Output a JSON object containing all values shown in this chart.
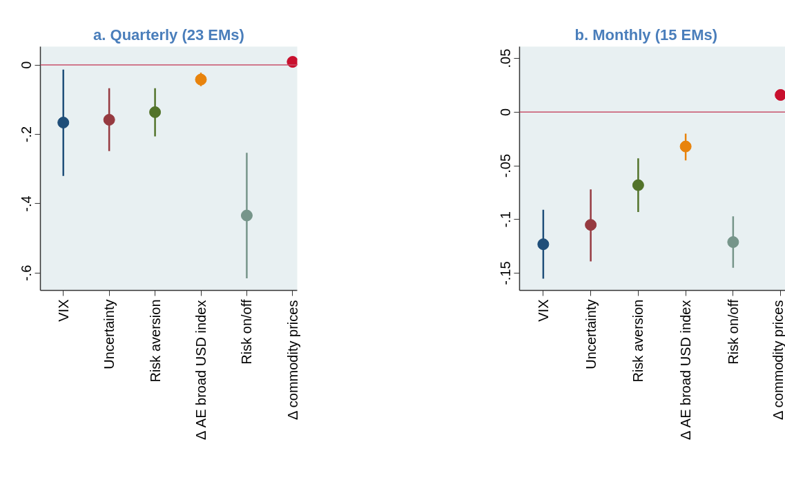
{
  "chart_data": [
    {
      "type": "scatter",
      "title": "a. Quarterly (23 EMs)",
      "categories": [
        "VIX",
        "Uncertainty",
        "Risk aversion",
        "Δ AE broad USD index",
        "Risk on/off",
        "Δ commodity prices"
      ],
      "values": [
        -0.166,
        -0.158,
        -0.136,
        -0.042,
        -0.434,
        0.009
      ],
      "errors": [
        [
          -0.32,
          -0.013
        ],
        [
          -0.248,
          -0.067
        ],
        [
          -0.206,
          -0.067
        ],
        [
          -0.061,
          -0.022
        ],
        [
          -0.615,
          -0.253
        ],
        null
      ],
      "colors": [
        "#1f4e79",
        "#963a40",
        "#52732a",
        "#e8830c",
        "#76958a",
        "#c8102e"
      ],
      "ylim": [
        -0.65,
        0.053
      ],
      "yticks": [
        {
          "value": -0.6,
          "label": "-.6"
        },
        {
          "value": -0.4,
          "label": "-.4"
        },
        {
          "value": -0.2,
          "label": "-.2"
        },
        0
      ],
      "ref_lines": [
        {
          "axis": "y",
          "value": 0,
          "color": "#c8506a"
        }
      ],
      "marker": "circle",
      "grid": false
    },
    {
      "type": "scatter",
      "title": "b.    Monthly (15 EMs)",
      "categories": [
        "VIX",
        "Uncertainty",
        "Risk aversion",
        "Δ AE broad USD index",
        "Risk on/off",
        "Δ commodity prices"
      ],
      "values": [
        -0.123,
        -0.105,
        -0.068,
        -0.032,
        -0.121,
        0.016
      ],
      "errors": [
        [
          -0.155,
          -0.091
        ],
        [
          -0.139,
          -0.072
        ],
        [
          -0.093,
          -0.043
        ],
        [
          -0.045,
          -0.02
        ],
        [
          -0.145,
          -0.097
        ],
        null
      ],
      "colors": [
        "#1f4e79",
        "#963a40",
        "#52732a",
        "#e8830c",
        "#76958a",
        "#c8102e"
      ],
      "ylim": [
        -0.166,
        0.061
      ],
      "yticks": [
        {
          "value": -0.15,
          "label": "-.15"
        },
        {
          "value": -0.1,
          "label": "-.1"
        },
        {
          "value": -0.05,
          "label": "-.05"
        },
        0,
        {
          "value": 0.05,
          "label": ".05"
        }
      ],
      "ref_lines": [
        {
          "axis": "y",
          "value": 0,
          "color": "#c8506a"
        }
      ],
      "marker": "circle",
      "grid": false
    }
  ]
}
